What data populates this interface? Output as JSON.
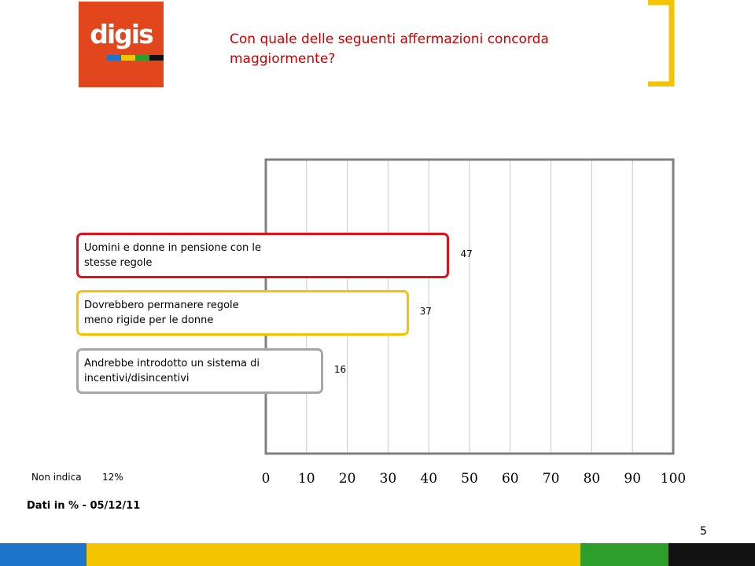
{
  "header": {
    "logo_text": "digis",
    "question": "Con quale delle seguenti affermazioni concorda maggiormente?"
  },
  "colors": {
    "logo_bg": "#e2461c",
    "logo_stripes": [
      "#1e74c8",
      "#f5c400",
      "#2e9e2a",
      "#111111"
    ],
    "bracket": "#f5c400",
    "frame": "#808080",
    "grid": "#c8c8c8",
    "bottom_bar": [
      "#1e74c8",
      "#f5c400",
      "#2e9e2a",
      "#111111"
    ]
  },
  "chart_data": {
    "type": "bar",
    "orientation": "horizontal",
    "title": "Con quale delle seguenti affermazioni concorda maggiormente?",
    "categories": [
      "Uomini e donne in pensione con le stesse regole",
      "Dovrebbero permanere regole meno rigide per le donne",
      "Andrebbe introdotto un sistema di incentivi/disincentivi"
    ],
    "values": [
      47,
      37,
      16
    ],
    "colors": [
      "#e3101c",
      "#f5c400",
      "#a6a6a6"
    ],
    "xlim": [
      0,
      100
    ],
    "xticks": [
      0,
      10,
      20,
      30,
      40,
      50,
      60,
      70,
      80,
      90,
      100
    ],
    "grid": true,
    "value_labels": [
      "47",
      "37",
      "16"
    ]
  },
  "non_indica": {
    "label": "Non indica",
    "value": "12%"
  },
  "footer": {
    "note": "Dati in % - 05/12/11",
    "page_number": "5"
  }
}
